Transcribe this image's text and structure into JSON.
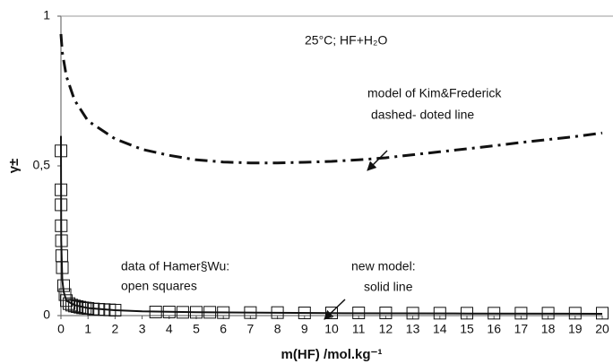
{
  "chart_data": {
    "type": "line",
    "title": "25°C; HF+H₂O",
    "x_label": "m(HF) /mol.kg⁻¹",
    "y_label": "γ±",
    "annotations": [
      "model of Kim&Frederick",
      "dashed- doted line",
      "data of Hamer§Wu:",
      "open squares",
      "new model:",
      "solid line"
    ],
    "xlim": [
      0,
      20
    ],
    "xticks": [
      0,
      1,
      2,
      3,
      4,
      5,
      6,
      7,
      8,
      9,
      10,
      11,
      12,
      13,
      14,
      15,
      16,
      17,
      18,
      19,
      20
    ],
    "ylim": [
      0,
      1
    ],
    "yticks": [
      0,
      {
        "value": 0.5,
        "label": "0,5"
      },
      1
    ],
    "series": [
      {
        "style": "dashdot",
        "color": "#111111",
        "x": [
          0,
          0.05,
          0.2,
          0.5,
          1,
          2,
          3,
          4,
          5,
          6,
          7,
          8,
          9,
          10,
          11,
          12,
          13,
          14,
          15,
          16,
          17,
          18,
          19,
          20
        ],
        "values": [
          0.94,
          0.88,
          0.8,
          0.72,
          0.65,
          0.59,
          0.555,
          0.535,
          0.52,
          0.513,
          0.51,
          0.51,
          0.512,
          0.515,
          0.52,
          0.527,
          0.537,
          0.547,
          0.557,
          0.567,
          0.578,
          0.588,
          0.598,
          0.61
        ]
      },
      {
        "style": "markers",
        "color": "#111111",
        "x": [
          0.001,
          0.002,
          0.005,
          0.01,
          0.02,
          0.03,
          0.05,
          0.1,
          0.15,
          0.2,
          0.3,
          0.4,
          0.5,
          0.6,
          0.7,
          0.8,
          0.9,
          1.0,
          1.2,
          1.4,
          1.6,
          1.8,
          2.0,
          3.5,
          4,
          4.5,
          5,
          5.5,
          6,
          7,
          8,
          9,
          10,
          11,
          12,
          13,
          14,
          15,
          16,
          17,
          18,
          19,
          20
        ],
        "values": [
          0.55,
          0.42,
          0.37,
          0.3,
          0.25,
          0.2,
          0.16,
          0.1,
          0.07,
          0.05,
          0.04,
          0.035,
          0.032,
          0.03,
          0.028,
          0.026,
          0.025,
          0.024,
          0.022,
          0.021,
          0.02,
          0.019,
          0.018,
          0.012,
          0.012,
          0.011,
          0.011,
          0.011,
          0.01,
          0.01,
          0.01,
          0.009,
          0.009,
          0.009,
          0.009,
          0.008,
          0.008,
          0.008,
          0.008,
          0.008,
          0.008,
          0.008,
          0.008
        ]
      },
      {
        "style": "solid",
        "color": "#111111",
        "x": [
          0.001,
          0.01,
          0.05,
          0.1,
          0.2,
          0.5,
          1,
          2,
          3,
          5,
          10,
          15,
          20
        ],
        "values": [
          0.6,
          0.25,
          0.12,
          0.08,
          0.05,
          0.035,
          0.025,
          0.018,
          0.014,
          0.011,
          0.008,
          0.007,
          0.006
        ]
      }
    ]
  }
}
